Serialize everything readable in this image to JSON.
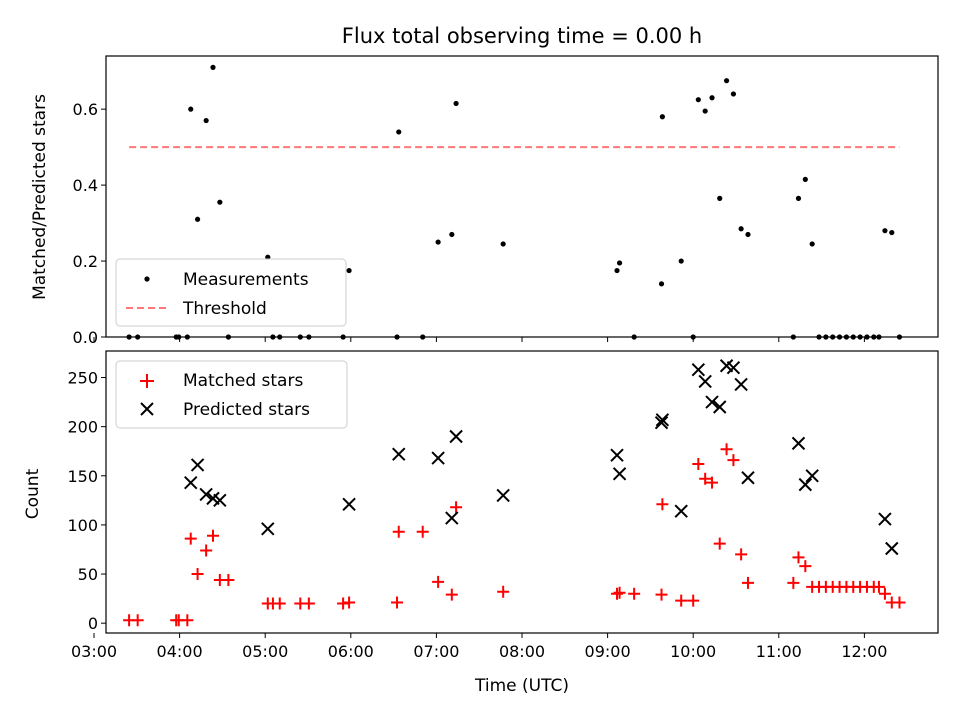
{
  "title": "Flux total observing time = 0.00 h",
  "chart_data": [
    {
      "type": "scatter",
      "panel": "top",
      "ylabel": "Matched/Predicted stars",
      "xlim": [
        3.14,
        12.86
      ],
      "ylim": [
        0,
        0.74
      ],
      "yticks": [
        0,
        0.2,
        0.4,
        0.6
      ],
      "ytick_labels": [
        "0.0",
        "0.2",
        "0.4",
        "0.6"
      ],
      "legend_position": "lower-left",
      "threshold": {
        "name": "Threshold",
        "value": 0.5,
        "x_range": [
          3.41,
          12.41
        ],
        "color": "#ff7777"
      },
      "series": [
        {
          "name": "Measurements",
          "color": "#000000",
          "points": [
            [
              3.41,
              0.0
            ],
            [
              3.51,
              0.0
            ],
            [
              3.96,
              0.0
            ],
            [
              3.99,
              0.0
            ],
            [
              4.09,
              0.0
            ],
            [
              4.13,
              0.6
            ],
            [
              4.21,
              0.31
            ],
            [
              4.31,
              0.57
            ],
            [
              4.39,
              0.71
            ],
            [
              4.47,
              0.355
            ],
            [
              4.57,
              0.0
            ],
            [
              5.03,
              0.21
            ],
            [
              5.09,
              0.0
            ],
            [
              5.17,
              0.0
            ],
            [
              5.41,
              0.0
            ],
            [
              5.51,
              0.0
            ],
            [
              5.91,
              0.0
            ],
            [
              5.98,
              0.175
            ],
            [
              6.54,
              0.0
            ],
            [
              6.56,
              0.54
            ],
            [
              6.84,
              0.0
            ],
            [
              7.02,
              0.25
            ],
            [
              7.18,
              0.27
            ],
            [
              7.23,
              0.615
            ],
            [
              7.78,
              0.245
            ],
            [
              9.11,
              0.175
            ],
            [
              9.14,
              0.195
            ],
            [
              9.31,
              0.0
            ],
            [
              9.63,
              0.14
            ],
            [
              9.64,
              0.58
            ],
            [
              9.86,
              0.2
            ],
            [
              10.0,
              0.0
            ],
            [
              10.06,
              0.625
            ],
            [
              10.14,
              0.595
            ],
            [
              10.22,
              0.63
            ],
            [
              10.31,
              0.365
            ],
            [
              10.39,
              0.675
            ],
            [
              10.47,
              0.64
            ],
            [
              10.56,
              0.285
            ],
            [
              10.64,
              0.27
            ],
            [
              11.17,
              0.0
            ],
            [
              11.23,
              0.365
            ],
            [
              11.31,
              0.415
            ],
            [
              11.39,
              0.245
            ],
            [
              11.47,
              0.0
            ],
            [
              11.55,
              0.0
            ],
            [
              11.63,
              0.0
            ],
            [
              11.71,
              0.0
            ],
            [
              11.79,
              0.0
            ],
            [
              11.87,
              0.0
            ],
            [
              11.95,
              0.0
            ],
            [
              12.03,
              0.0
            ],
            [
              12.11,
              0.0
            ],
            [
              12.17,
              0.0
            ],
            [
              12.24,
              0.28
            ],
            [
              12.32,
              0.275
            ],
            [
              12.41,
              0.0
            ]
          ]
        }
      ]
    },
    {
      "type": "scatter",
      "panel": "bottom",
      "xlabel": "Time (UTC)",
      "ylabel": "Count",
      "xlim": [
        3.14,
        12.86
      ],
      "ylim": [
        -10,
        277
      ],
      "xticks": [
        3,
        4,
        5,
        6,
        7,
        8,
        9,
        10,
        11,
        12
      ],
      "xtick_labels": [
        "03:00",
        "04:00",
        "05:00",
        "06:00",
        "07:00",
        "08:00",
        "09:00",
        "10:00",
        "11:00",
        "12:00"
      ],
      "yticks": [
        0,
        50,
        100,
        150,
        200,
        250
      ],
      "ytick_labels": [
        "0",
        "50",
        "100",
        "150",
        "200",
        "250"
      ],
      "legend_position": "top-left",
      "series": [
        {
          "name": "Matched stars",
          "marker": "plus",
          "color": "#ff0000",
          "points": [
            [
              3.41,
              3
            ],
            [
              3.51,
              3
            ],
            [
              3.96,
              3
            ],
            [
              3.99,
              3
            ],
            [
              4.09,
              3
            ],
            [
              4.13,
              86
            ],
            [
              4.21,
              50
            ],
            [
              4.31,
              74
            ],
            [
              4.39,
              89
            ],
            [
              4.47,
              44
            ],
            [
              4.57,
              44
            ],
            [
              5.03,
              20
            ],
            [
              5.09,
              20
            ],
            [
              5.17,
              20
            ],
            [
              5.41,
              20
            ],
            [
              5.51,
              20
            ],
            [
              5.91,
              20
            ],
            [
              5.98,
              21
            ],
            [
              6.54,
              21
            ],
            [
              6.56,
              93
            ],
            [
              6.84,
              93
            ],
            [
              7.02,
              42
            ],
            [
              7.18,
              29
            ],
            [
              7.23,
              118
            ],
            [
              7.78,
              32
            ],
            [
              9.11,
              30
            ],
            [
              9.14,
              31
            ],
            [
              9.31,
              30
            ],
            [
              9.63,
              29
            ],
            [
              9.64,
              121
            ],
            [
              9.86,
              23
            ],
            [
              10.0,
              23
            ],
            [
              10.06,
              162
            ],
            [
              10.14,
              147
            ],
            [
              10.22,
              143
            ],
            [
              10.31,
              81
            ],
            [
              10.39,
              177
            ],
            [
              10.47,
              166
            ],
            [
              10.56,
              70
            ],
            [
              10.64,
              41
            ],
            [
              11.17,
              41
            ],
            [
              11.23,
              67
            ],
            [
              11.31,
              58
            ],
            [
              11.39,
              37
            ],
            [
              11.47,
              37
            ],
            [
              11.55,
              37
            ],
            [
              11.63,
              37
            ],
            [
              11.71,
              37
            ],
            [
              11.79,
              37
            ],
            [
              11.87,
              37
            ],
            [
              11.95,
              37
            ],
            [
              12.03,
              37
            ],
            [
              12.11,
              37
            ],
            [
              12.17,
              37
            ],
            [
              12.24,
              30
            ],
            [
              12.32,
              21
            ],
            [
              12.41,
              21
            ]
          ]
        },
        {
          "name": "Predicted stars",
          "marker": "x",
          "color": "#000000",
          "points": [
            [
              4.13,
              143
            ],
            [
              4.21,
              161
            ],
            [
              4.31,
              131
            ],
            [
              4.39,
              127
            ],
            [
              4.47,
              125
            ],
            [
              5.03,
              96
            ],
            [
              5.98,
              121
            ],
            [
              6.56,
              172
            ],
            [
              7.02,
              168
            ],
            [
              7.18,
              107
            ],
            [
              7.23,
              190
            ],
            [
              7.78,
              130
            ],
            [
              9.11,
              171
            ],
            [
              9.14,
              152
            ],
            [
              9.63,
              204
            ],
            [
              9.64,
              207
            ],
            [
              9.86,
              114
            ],
            [
              10.06,
              258
            ],
            [
              10.14,
              246
            ],
            [
              10.22,
              225
            ],
            [
              10.31,
              220
            ],
            [
              10.39,
              262
            ],
            [
              10.47,
              260
            ],
            [
              10.56,
              243
            ],
            [
              10.64,
              148
            ],
            [
              11.23,
              183
            ],
            [
              11.31,
              141
            ],
            [
              11.39,
              150
            ],
            [
              12.24,
              106
            ],
            [
              12.32,
              76
            ]
          ]
        }
      ]
    }
  ]
}
